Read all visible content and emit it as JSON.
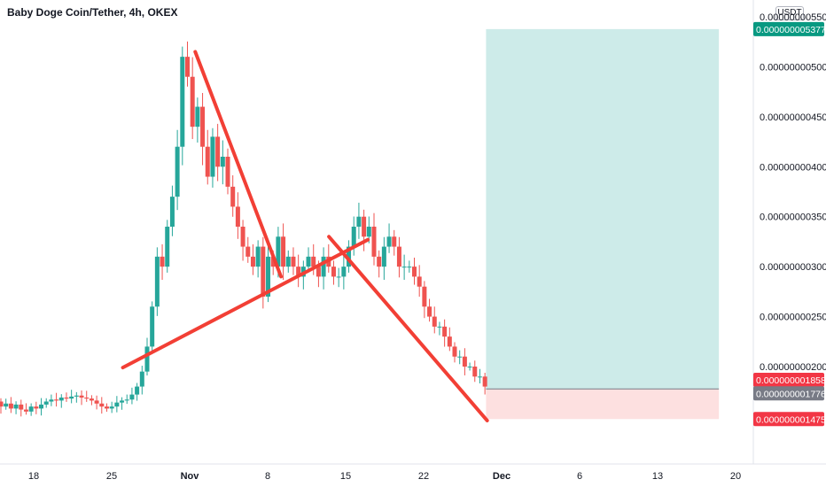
{
  "header": {
    "title": "Baby Doge Coin/Tether, 4h, OKEX"
  },
  "price_axis": {
    "unit": "USDT"
  },
  "colors": {
    "up": "#26a69a",
    "down": "#ef5350",
    "trendline": "#f23f35",
    "target_zone": "#cdebe9",
    "stop_zone": "#fde0e0",
    "target_tag": "#089981",
    "current_tag": "#f23645",
    "entry_tag": "#787b86",
    "stop_tag": "#f23645"
  },
  "chart_data": {
    "type": "candlestick",
    "title": "Baby Doge Coin/Tether, 4h, OKEX",
    "ylim": [
      9e-10,
      5.6e-09
    ],
    "y_ticks": [
      "0.000000002000",
      "0.000000002500",
      "0.000000003000",
      "0.000000003500",
      "0.000000004000",
      "0.000000004500",
      "0.000000005000",
      "0.000000005500"
    ],
    "y_tick_values": [
      2e-09,
      2.5e-09,
      3e-09,
      3.5e-09,
      4e-09,
      4.5e-09,
      5e-09,
      5.5e-09
    ],
    "x_ticks": [
      "18",
      "25",
      "Nov",
      "8",
      "15",
      "22",
      "Dec",
      "6",
      "13",
      "20"
    ],
    "x_tick_days": [
      0,
      7,
      14,
      21,
      28,
      35,
      42,
      49,
      56,
      63
    ],
    "xlim_days": [
      0,
      64
    ],
    "grid": false,
    "price_tags": [
      {
        "label": "0.000000005377",
        "value": 5.377e-09,
        "role": "target"
      },
      {
        "label": "0.000000001858",
        "value": 1.858e-09,
        "role": "current"
      },
      {
        "label": "0.000000001776",
        "value": 1.776e-09,
        "role": "entry"
      },
      {
        "label": "0.000000001475",
        "value": 1.475e-09,
        "role": "stop"
      }
    ],
    "position": {
      "entry": 1.776e-09,
      "target": 5.377e-09,
      "stop": 1.475e-09,
      "start_day": 40.6,
      "end_day": 61.5
    },
    "trendlines": [
      {
        "from": {
          "day": 14.5,
          "value": 5.15e-09
        },
        "to": {
          "day": 22.2,
          "value": 2.9e-09
        }
      },
      {
        "from": {
          "day": 8.0,
          "value": 1.99e-09
        },
        "to": {
          "day": 30.0,
          "value": 3.27e-09
        }
      },
      {
        "from": {
          "day": 26.5,
          "value": 3.3e-09
        },
        "to": {
          "day": 40.7,
          "value": 1.46e-09
        }
      }
    ],
    "closes": [
      1.7e-09,
      1.68e-09,
      1.65e-09,
      1.6e-09,
      1.63e-09,
      1.58e-09,
      1.62e-09,
      1.57e-09,
      1.55e-09,
      1.6e-09,
      1.58e-09,
      1.62e-09,
      1.65e-09,
      1.67e-09,
      1.66e-09,
      1.69e-09,
      1.68e-09,
      1.7e-09,
      1.71e-09,
      1.69e-09,
      1.68e-09,
      1.66e-09,
      1.63e-09,
      1.6e-09,
      1.58e-09,
      1.6e-09,
      1.64e-09,
      1.66e-09,
      1.67e-09,
      1.72e-09,
      1.8e-09,
      1.95e-09,
      2.2e-09,
      2.6e-09,
      3.1e-09,
      3e-09,
      3.4e-09,
      3.7e-09,
      4.2e-09,
      5.1e-09,
      4.9e-09,
      4.4e-09,
      4.6e-09,
      4.2e-09,
      3.9e-09,
      4.3e-09,
      4e-09,
      4.1e-09,
      3.8e-09,
      3.6e-09,
      3.4e-09,
      3.2e-09,
      3.1e-09,
      3e-09,
      3.2e-09,
      2.7e-09,
      3.1e-09,
      3e-09,
      3.3e-09,
      3e-09,
      3.1e-09,
      3e-09,
      2.9e-09,
      3e-09,
      3.1e-09,
      3e-09,
      2.9e-09,
      3.1e-09,
      3e-09,
      2.9e-09,
      2.9e-09,
      3e-09,
      3.2e-09,
      3.4e-09,
      3.5e-09,
      3.3e-09,
      3.4e-09,
      3.1e-09,
      3e-09,
      3.2e-09,
      3.3e-09,
      3.2e-09,
      3e-09,
      3e-09,
      3e-09,
      2.9e-09,
      2.8e-09,
      2.6e-09,
      2.5e-09,
      2.4e-09,
      2.4e-09,
      2.3e-09,
      2.2e-09,
      2.1e-09,
      2.1e-09,
      2e-09,
      2e-09,
      1.9e-09,
      1.9e-09,
      1.8e-09
    ]
  }
}
